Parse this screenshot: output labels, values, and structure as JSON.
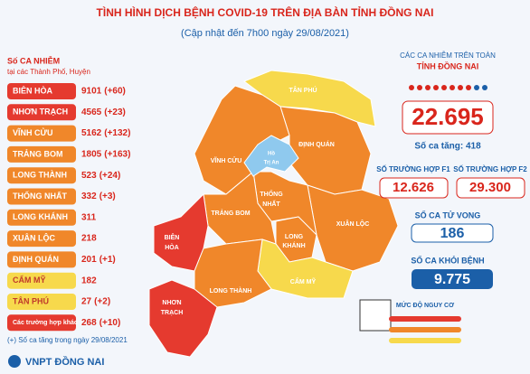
{
  "header": {
    "title": "TÌNH HÌNH DỊCH BỆNH COVID-19 TRÊN ĐỊA BÀN TỈNH ĐỒNG NAI",
    "subtitle": "(Cập nhật đến 7h00 ngày 29/08/2021)"
  },
  "districts": {
    "heading": "Số CA NHIỄM",
    "subheading": "tại các Thành Phố, Huyện",
    "rows": [
      [
        "BIÊN HÒA",
        "9101",
        "(+60)"
      ],
      [
        "NHƠN TRẠCH",
        "4565",
        "(+23)"
      ],
      [
        "VĨNH CỬU",
        "5162",
        "(+132)"
      ],
      [
        "TRẢNG BOM",
        "1805",
        "(+163)"
      ],
      [
        "LONG THÀNH",
        "523",
        "(+24)"
      ],
      [
        "THỐNG NHẤT",
        "332",
        "(+3)"
      ],
      [
        "LONG KHÁNH",
        "311",
        ""
      ],
      [
        "XUÂN LỘC",
        "218",
        ""
      ],
      [
        "ĐỊNH QUÁN",
        "201",
        "(+1)"
      ],
      [
        "CẨM MỸ",
        "182",
        ""
      ],
      [
        "TÂN PHÚ",
        "27",
        "(+2)"
      ],
      [
        "Các trường hợp khác",
        "268",
        "(+10)"
      ]
    ],
    "footnote": "(+) Số ca tăng trong ngày 29/08/2021"
  },
  "map": {
    "labels": [
      "TÂN PHÚ",
      "ĐỊNH QUÁN",
      "VĨNH CỬU",
      "Hồ",
      "Trị An",
      "THỐNG",
      "NHẤT",
      "TRẢNG BOM",
      "LONG",
      "KHÁNH",
      "XUÂN LỘC",
      "BIÊN",
      "HÒA",
      "CẨM MỸ",
      "LONG THÀNH",
      "NHƠN",
      "TRẠCH"
    ]
  },
  "stats": {
    "total_label_1": "CÁC CA NHIỄM TRÊN TOÀN",
    "total_label_2": "TỈNH ĐỒNG NAI",
    "total": "22.695",
    "increase": "Số ca tăng: 418",
    "f1_label": "SỐ TRƯỜNG HỢP F1",
    "f1": "12.626",
    "f2_label": "SỐ TRƯỜNG HỢP F2",
    "f2": "29.300",
    "deaths_label": "SỐ CA TỬ VONG",
    "deaths": "186",
    "recovered_label": "SỐ CA KHỎI BỆNH",
    "recovered": "9.775"
  },
  "legend": {
    "title": "MỨC ĐỘ NGUY CƠ"
  },
  "footer": {
    "logo": "VNPT ĐỒNG NAI"
  }
}
